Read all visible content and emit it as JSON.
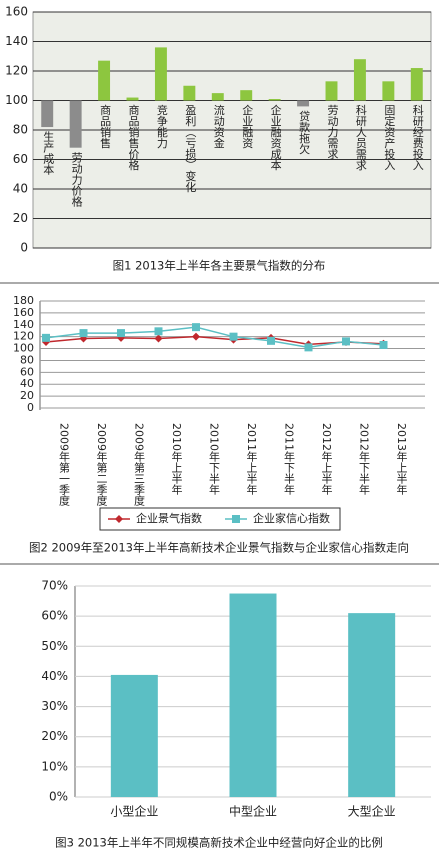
{
  "chart_data": [
    {
      "type": "bar",
      "title": "图1  2013年上半年各主要景气指数的分布",
      "categories": [
        "生产成本",
        "劳动力价格",
        "商品销售",
        "商品销售价格",
        "竞争能力",
        "盈利（亏损）变化",
        "流动资金",
        "企业融资",
        "企业融资成本",
        "贷款拖欠",
        "劳动力需求",
        "科研人员需求",
        "固定资产投入",
        "科研经费投入"
      ],
      "values": [
        82,
        68,
        127,
        102,
        136,
        110,
        105,
        107,
        101,
        96,
        113,
        128,
        113,
        122
      ],
      "colors": [
        "#8c8c8c",
        "#8c8c8c",
        "#8dc63f",
        "#8dc63f",
        "#8dc63f",
        "#8dc63f",
        "#8dc63f",
        "#8dc63f",
        "#8dc63f",
        "#8c8c8c",
        "#8dc63f",
        "#8dc63f",
        "#8dc63f",
        "#8dc63f"
      ],
      "base": 100,
      "ylim": [
        0,
        160
      ],
      "yticks": [
        0,
        20,
        40,
        60,
        80,
        100,
        120,
        140,
        160
      ],
      "grid": true
    },
    {
      "type": "line",
      "title": "图2 2009年至2013年上半年高新技术企业景气指数与企业家信心指数走向",
      "categories": [
        "2009年第一季度",
        "2009年第二季度",
        "2009年第三季度",
        "2010年上半年",
        "2010年下半年",
        "2011年上半年",
        "2011年下半年",
        "2012年上半年",
        "2012年下半年",
        "2013年上半年"
      ],
      "series": [
        {
          "name": "企业景气指数",
          "color": "#c0282d",
          "marker": "diamond",
          "values": [
            111,
            117,
            118,
            117,
            120,
            115,
            118,
            107,
            111,
            108
          ]
        },
        {
          "name": "企业家信心指数",
          "color": "#5bbfc4",
          "marker": "square",
          "values": [
            118,
            126,
            126,
            129,
            136,
            120,
            113,
            102,
            112,
            106
          ]
        }
      ],
      "ylim": [
        0,
        180
      ],
      "yticks": [
        0,
        20,
        40,
        60,
        80,
        100,
        120,
        140,
        160,
        180
      ],
      "grid": true
    },
    {
      "type": "bar",
      "title": "图3 2013年上半年不同规模高新技术企业中经营向好企业的比例",
      "categories": [
        "小型企业",
        "中型企业",
        "大型企业"
      ],
      "values": [
        40.5,
        67.5,
        61
      ],
      "color": "#5bbfc4",
      "ylim": [
        0,
        70
      ],
      "yticks": [
        {
          "value": 0,
          "label": "0%"
        },
        {
          "value": 10,
          "label": "10%"
        },
        {
          "value": 20,
          "label": "20%"
        },
        {
          "value": 30,
          "label": "30%"
        },
        {
          "value": 40,
          "label": "40%"
        },
        {
          "value": 50,
          "label": "50%"
        },
        {
          "value": 60,
          "label": "60%"
        },
        {
          "value": 70,
          "label": "70%"
        }
      ],
      "grid": true
    }
  ]
}
